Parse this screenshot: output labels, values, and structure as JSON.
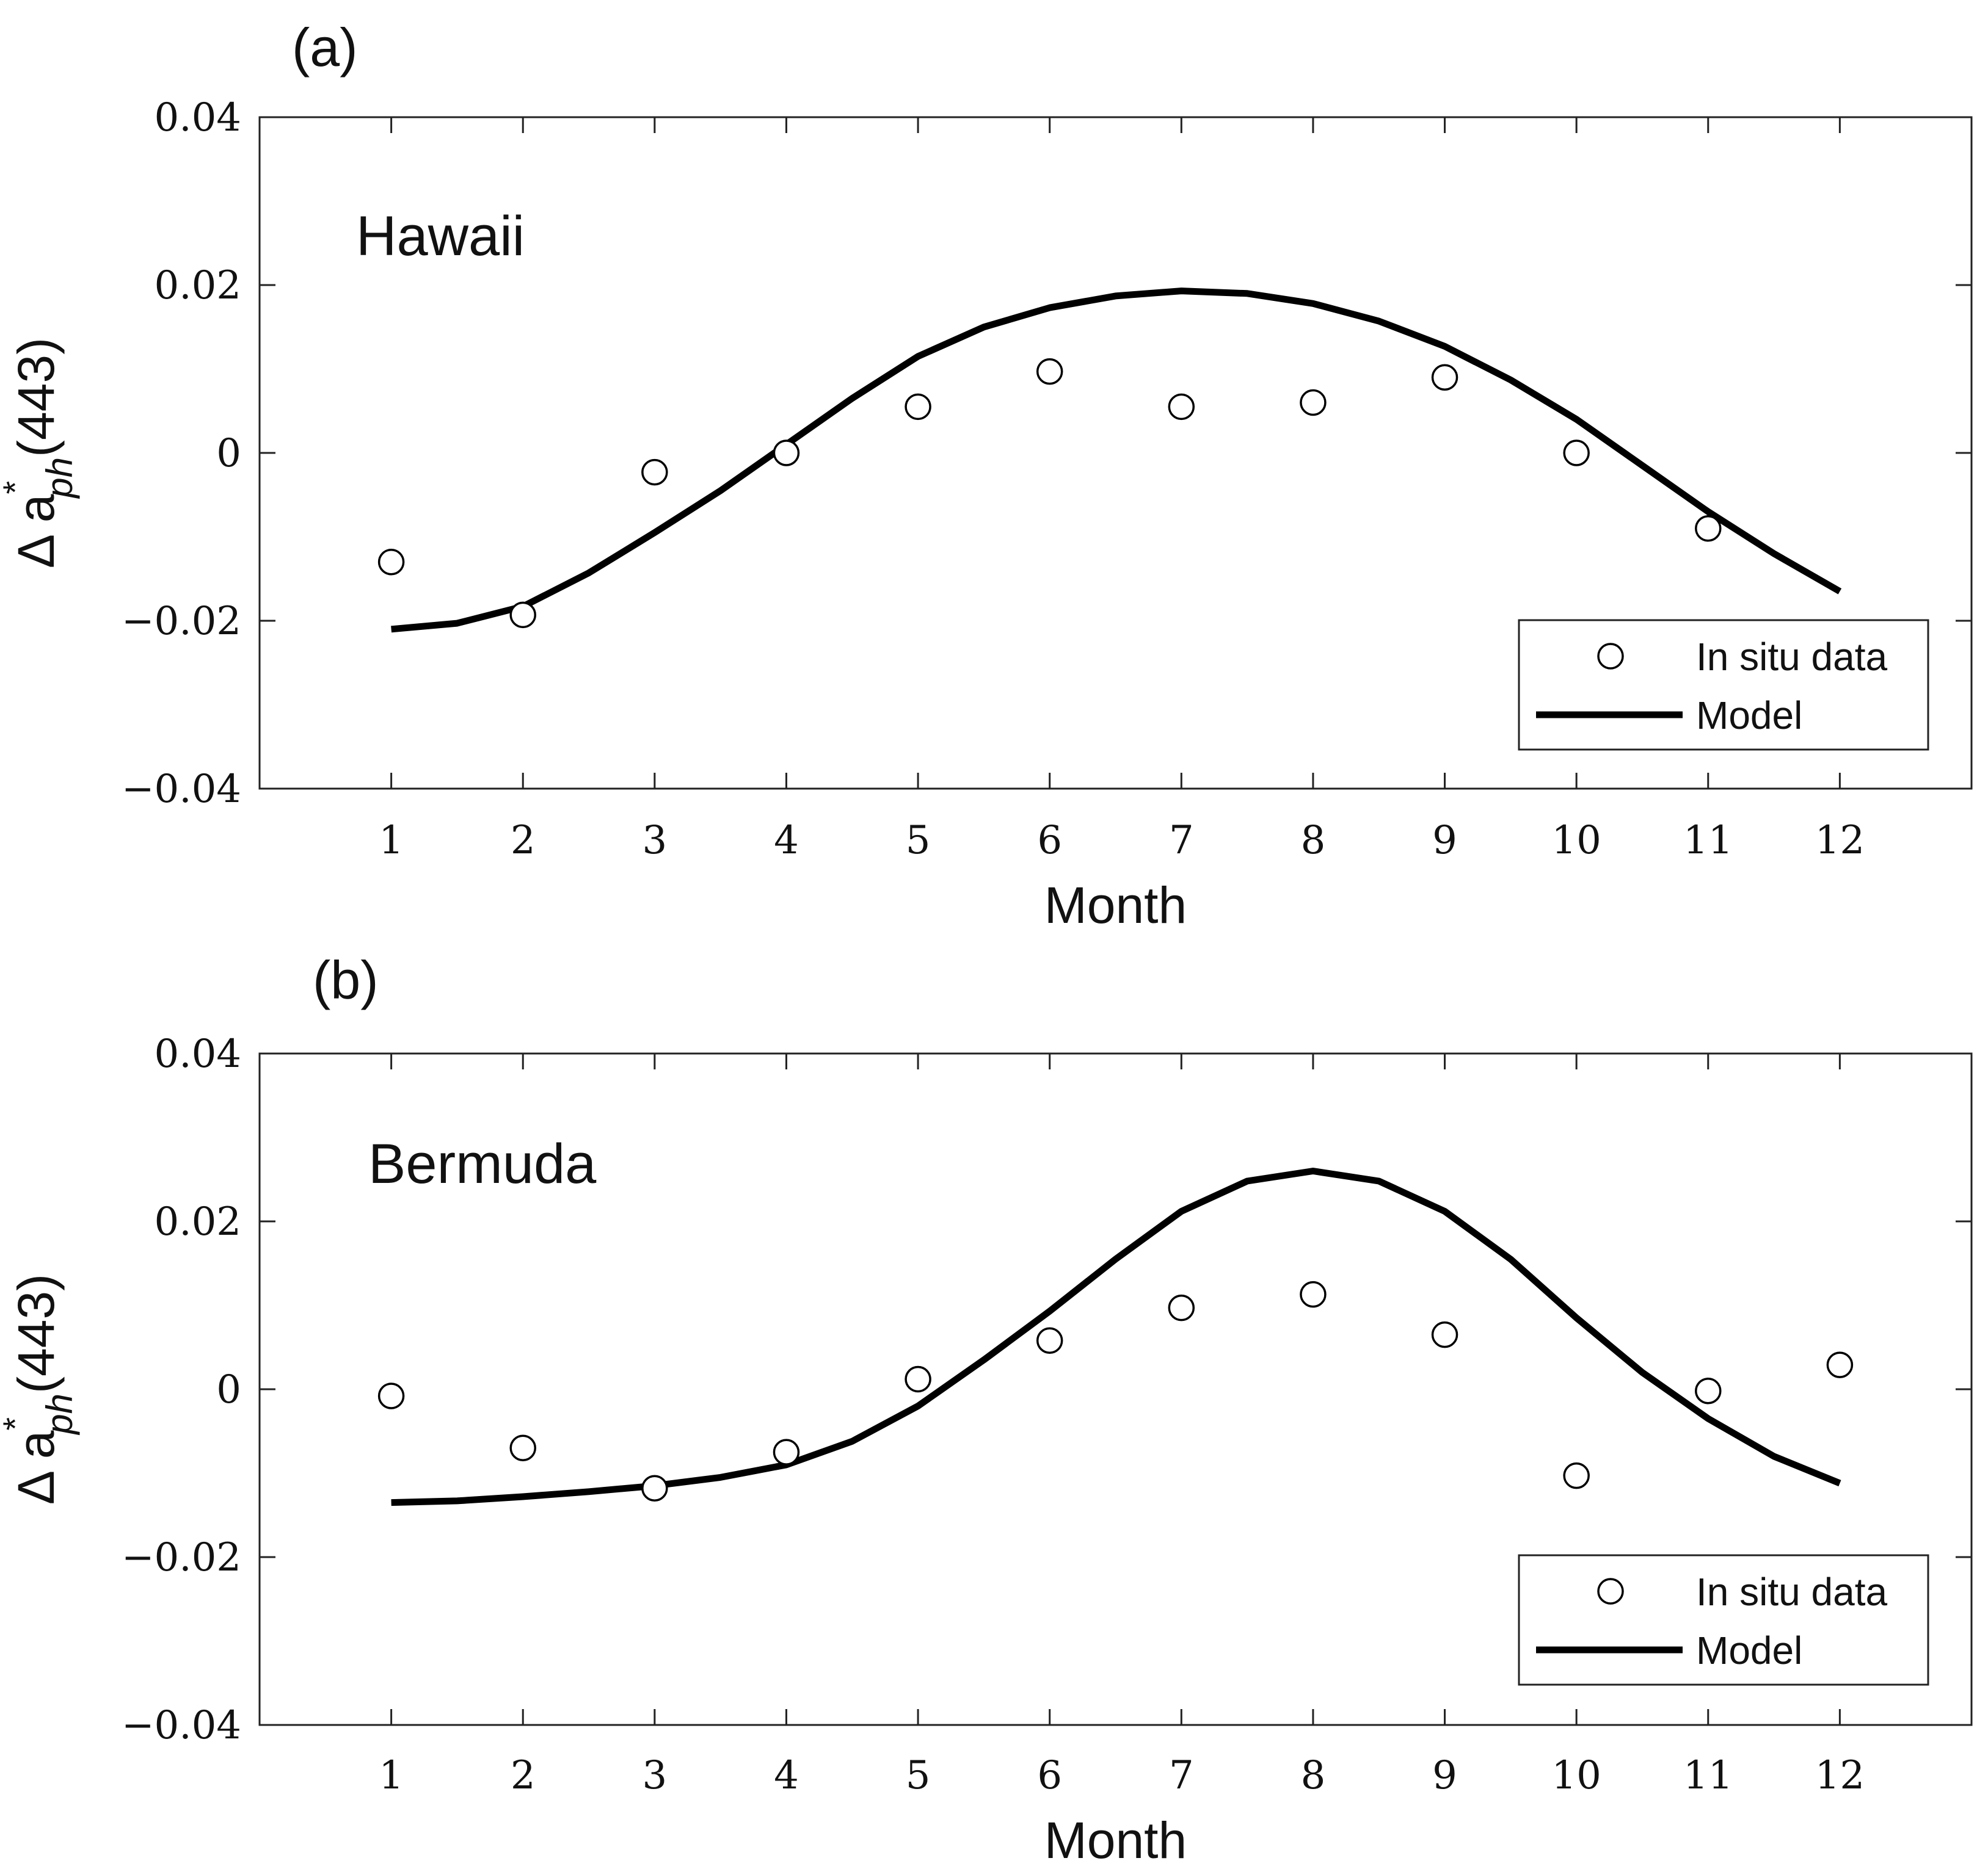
{
  "chart_data": [
    {
      "panel_label": "(a)",
      "type": "scatter",
      "annotation": "Hawaii",
      "xlabel": "Month",
      "ylabel": {
        "base": "Δ a",
        "sup": "*",
        "sub": "ph",
        "suffix": "(443)"
      },
      "xlim": [
        0,
        13
      ],
      "ylim": [
        -0.04,
        0.04
      ],
      "xticks": [
        1,
        2,
        3,
        4,
        5,
        6,
        7,
        8,
        9,
        10,
        11,
        12
      ],
      "yticks": [
        -0.04,
        -0.02,
        0,
        0.02,
        0.04
      ],
      "ytick_labels": [
        "−0.04",
        "−0.02",
        "0",
        "0.02",
        "0.04"
      ],
      "legend_position": "bottom-right",
      "series": [
        {
          "name": "In situ data",
          "type": "scatter",
          "marker": "open-circle",
          "x": [
            1,
            2,
            3,
            4,
            5,
            6,
            7,
            8,
            9,
            10,
            11
          ],
          "y": [
            -0.013,
            -0.0193,
            -0.0023,
            0.0,
            0.0055,
            0.0097,
            0.0055,
            0.006,
            0.009,
            0.0,
            -0.009
          ]
        },
        {
          "name": "Model",
          "type": "line",
          "x": [
            1,
            1.5,
            2,
            2.5,
            3,
            3.5,
            4,
            4.5,
            5,
            5.5,
            6,
            6.5,
            7,
            7.5,
            8,
            8.5,
            9,
            9.5,
            10,
            10.5,
            11,
            11.5,
            12
          ],
          "y": [
            -0.021,
            -0.0203,
            -0.0183,
            -0.0143,
            -0.0095,
            -0.0045,
            0.001,
            0.0065,
            0.0115,
            0.015,
            0.0173,
            0.0187,
            0.0193,
            0.019,
            0.0178,
            0.0157,
            0.0127,
            0.0087,
            0.004,
            -0.0015,
            -0.007,
            -0.012,
            -0.0165
          ]
        }
      ]
    },
    {
      "panel_label": "(b)",
      "type": "scatter",
      "annotation": "Bermuda",
      "xlabel": "Month",
      "ylabel": {
        "base": "Δ a",
        "sup": "*",
        "sub": "ph",
        "suffix": "(443)"
      },
      "xlim": [
        0,
        13
      ],
      "ylim": [
        -0.04,
        0.04
      ],
      "xticks": [
        1,
        2,
        3,
        4,
        5,
        6,
        7,
        8,
        9,
        10,
        11,
        12
      ],
      "yticks": [
        -0.04,
        -0.02,
        0,
        0.02,
        0.04
      ],
      "ytick_labels": [
        "−0.04",
        "−0.02",
        "0",
        "0.02",
        "0.04"
      ],
      "legend_position": "bottom-right",
      "series": [
        {
          "name": "In situ data",
          "type": "scatter",
          "marker": "open-circle",
          "x": [
            1,
            2,
            3,
            4,
            5,
            6,
            7,
            8,
            9,
            10,
            11,
            12
          ],
          "y": [
            -0.0008,
            -0.007,
            -0.0118,
            -0.0075,
            0.0012,
            0.0058,
            0.0097,
            0.0113,
            0.0065,
            -0.0103,
            -0.0002,
            0.0029
          ]
        },
        {
          "name": "Model",
          "type": "line",
          "x": [
            1,
            1.5,
            2,
            2.5,
            3,
            3.5,
            4,
            4.5,
            5,
            5.5,
            6,
            6.5,
            7,
            7.5,
            8,
            8.5,
            9,
            9.5,
            10,
            10.5,
            11,
            11.5,
            12
          ],
          "y": [
            -0.0135,
            -0.0133,
            -0.0128,
            -0.0122,
            -0.0115,
            -0.0105,
            -0.009,
            -0.0062,
            -0.002,
            0.0035,
            0.0093,
            0.0155,
            0.0212,
            0.0248,
            0.026,
            0.0248,
            0.0212,
            0.0155,
            0.0085,
            0.002,
            -0.0035,
            -0.008,
            -0.0112
          ]
        }
      ]
    }
  ]
}
